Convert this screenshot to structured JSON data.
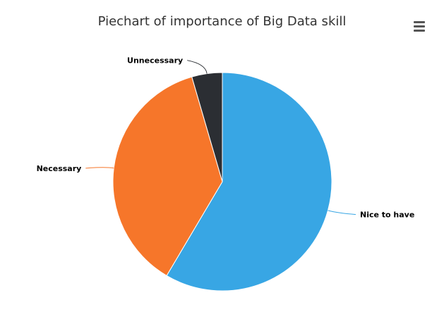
{
  "chart_data": {
    "type": "pie",
    "title": "Piechart of importance of Big Data skill",
    "slices": [
      {
        "name": "Nice to have",
        "value": 58.5,
        "color": "#38a6e4"
      },
      {
        "name": "Necessary",
        "value": 37.0,
        "color": "#f6762a"
      },
      {
        "name": "Unnecessary",
        "value": 4.5,
        "color": "#2b2e33"
      }
    ],
    "start_angle": "top",
    "direction": "clockwise",
    "legend": "none"
  },
  "toolbar": {
    "menu_icon": "hamburger-menu-icon"
  }
}
